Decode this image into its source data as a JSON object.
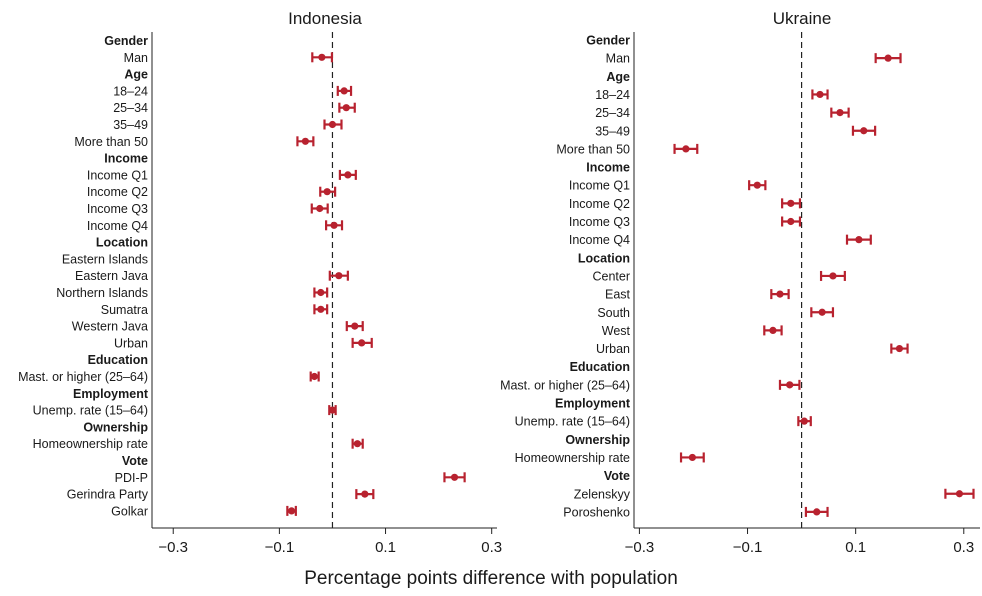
{
  "figure": {
    "xlabel": "Percentage points difference with population",
    "marker_color": "#b8222f",
    "reference_line_value": 0
  },
  "chart_data": [
    {
      "type": "scatter",
      "subtype": "dot-and-whisker",
      "title": "Indonesia",
      "xlim": [
        -0.34,
        0.31
      ],
      "x_ticks": [
        -0.3,
        -0.1,
        0.1,
        0.3
      ],
      "x_tick_labels": [
        "−0.3",
        "−0.1",
        "0.1",
        "0.3"
      ],
      "rows": [
        {
          "label": "Gender",
          "header": true
        },
        {
          "label": "Man",
          "value": -0.02,
          "low": -0.038,
          "high": -0.001
        },
        {
          "label": "Age",
          "header": true
        },
        {
          "label": "18–24",
          "value": 0.022,
          "low": 0.01,
          "high": 0.035
        },
        {
          "label": "25–34",
          "value": 0.026,
          "low": 0.013,
          "high": 0.042
        },
        {
          "label": "35–49",
          "value": 0.0,
          "low": -0.015,
          "high": 0.017
        },
        {
          "label": "More than 50",
          "value": -0.051,
          "low": -0.066,
          "high": -0.036
        },
        {
          "label": "Income",
          "header": true
        },
        {
          "label": "Income Q1",
          "value": 0.029,
          "low": 0.014,
          "high": 0.044
        },
        {
          "label": "Income Q2",
          "value": -0.01,
          "low": -0.023,
          "high": 0.005
        },
        {
          "label": "Income Q3",
          "value": -0.024,
          "low": -0.039,
          "high": -0.009
        },
        {
          "label": "Income Q4",
          "value": 0.003,
          "low": -0.012,
          "high": 0.018
        },
        {
          "label": "Location",
          "header": true
        },
        {
          "label": "Eastern Islands"
        },
        {
          "label": "Eastern Java",
          "value": 0.012,
          "low": -0.005,
          "high": 0.029
        },
        {
          "label": "Northern Islands",
          "value": -0.022,
          "low": -0.034,
          "high": -0.01
        },
        {
          "label": "Sumatra",
          "value": -0.022,
          "low": -0.034,
          "high": -0.01
        },
        {
          "label": "Western Java",
          "value": 0.042,
          "low": 0.027,
          "high": 0.057
        },
        {
          "label": "Urban",
          "value": 0.055,
          "low": 0.038,
          "high": 0.074
        },
        {
          "label": "Education",
          "header": true
        },
        {
          "label": "Mast. or higher (25–64)",
          "value": -0.034,
          "low": -0.041,
          "high": -0.026
        },
        {
          "label": "Employment",
          "header": true
        },
        {
          "label": "Unemp. rate (15–64)",
          "value": 0.0,
          "low": -0.006,
          "high": 0.006
        },
        {
          "label": "Ownership",
          "header": true
        },
        {
          "label": "Homeownership rate",
          "value": 0.047,
          "low": 0.038,
          "high": 0.057
        },
        {
          "label": "Vote",
          "header": true
        },
        {
          "label": "PDI-P",
          "value": 0.23,
          "low": 0.211,
          "high": 0.249
        },
        {
          "label": "Gerindra Party",
          "value": 0.061,
          "low": 0.045,
          "high": 0.077
        },
        {
          "label": "Golkar",
          "value": -0.077,
          "low": -0.085,
          "high": -0.069
        }
      ]
    },
    {
      "type": "scatter",
      "subtype": "dot-and-whisker",
      "title": "Ukraine",
      "xlim": [
        -0.31,
        0.33
      ],
      "x_ticks": [
        -0.3,
        -0.1,
        0.1,
        0.3
      ],
      "x_tick_labels": [
        "−0.3",
        "−0.1",
        "0.1",
        "0.3"
      ],
      "rows": [
        {
          "label": "Gender",
          "header": true
        },
        {
          "label": "Man",
          "value": 0.16,
          "low": 0.137,
          "high": 0.183
        },
        {
          "label": "Age",
          "header": true
        },
        {
          "label": "18–24",
          "value": 0.034,
          "low": 0.02,
          "high": 0.048
        },
        {
          "label": "25–34",
          "value": 0.071,
          "low": 0.055,
          "high": 0.087
        },
        {
          "label": "35–49",
          "value": 0.115,
          "low": 0.095,
          "high": 0.136
        },
        {
          "label": "More than 50",
          "value": -0.214,
          "low": -0.235,
          "high": -0.193
        },
        {
          "label": "Income",
          "header": true
        },
        {
          "label": "Income Q1",
          "value": -0.082,
          "low": -0.097,
          "high": -0.067
        },
        {
          "label": "Income Q2",
          "value": -0.02,
          "low": -0.036,
          "high": -0.003
        },
        {
          "label": "Income Q3",
          "value": -0.02,
          "low": -0.036,
          "high": -0.003
        },
        {
          "label": "Income Q4",
          "value": 0.106,
          "low": 0.084,
          "high": 0.128
        },
        {
          "label": "Location",
          "header": true
        },
        {
          "label": "Center",
          "value": 0.058,
          "low": 0.036,
          "high": 0.08
        },
        {
          "label": "East",
          "value": -0.04,
          "low": -0.056,
          "high": -0.024
        },
        {
          "label": "South",
          "value": 0.038,
          "low": 0.018,
          "high": 0.058
        },
        {
          "label": "West",
          "value": -0.053,
          "low": -0.069,
          "high": -0.037
        },
        {
          "label": "Urban",
          "value": 0.181,
          "low": 0.166,
          "high": 0.196
        },
        {
          "label": "Education",
          "header": true
        },
        {
          "label": "Mast. or higher (25–64)",
          "value": -0.022,
          "low": -0.04,
          "high": -0.004
        },
        {
          "label": "Employment",
          "header": true
        },
        {
          "label": "Unemp. rate (15–64)",
          "value": 0.005,
          "low": -0.006,
          "high": 0.017
        },
        {
          "label": "Ownership",
          "header": true
        },
        {
          "label": "Homeownership rate",
          "value": -0.202,
          "low": -0.223,
          "high": -0.181
        },
        {
          "label": "Vote",
          "header": true
        },
        {
          "label": "Zelenskyy",
          "value": 0.292,
          "low": 0.266,
          "high": 0.318
        },
        {
          "label": "Poroshenko",
          "value": 0.028,
          "low": 0.008,
          "high": 0.048
        }
      ]
    }
  ]
}
